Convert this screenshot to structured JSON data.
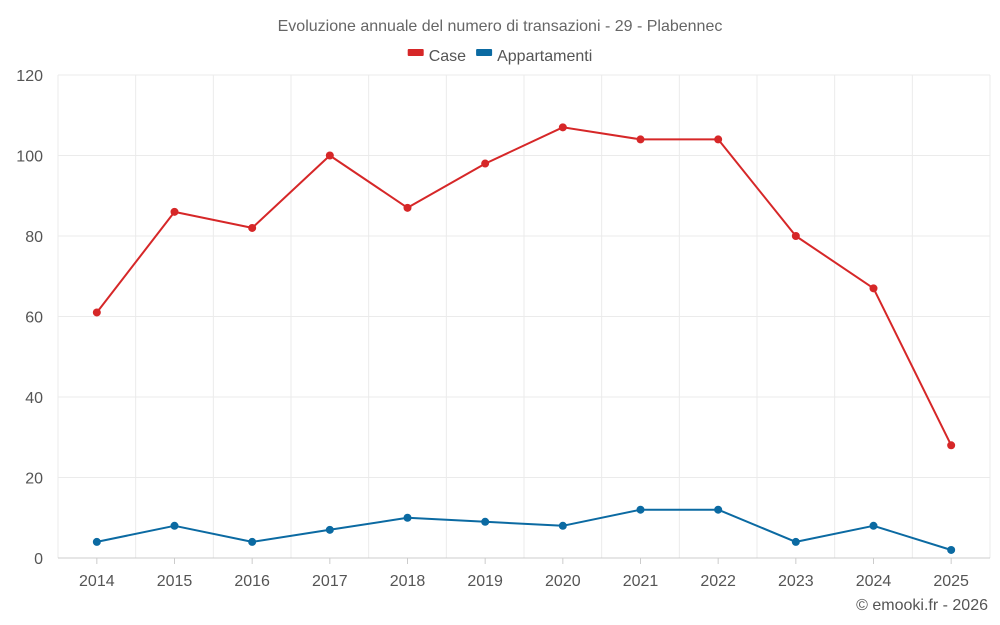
{
  "chart_data": {
    "type": "line",
    "title": "Evoluzione annuale del numero di transazioni - 29 - Plabennec",
    "categories": [
      "2014",
      "2015",
      "2016",
      "2017",
      "2018",
      "2019",
      "2020",
      "2021",
      "2022",
      "2023",
      "2024",
      "2025"
    ],
    "series": [
      {
        "name": "Case",
        "color": "#d62728",
        "values": [
          61,
          86,
          82,
          100,
          87,
          98,
          107,
          104,
          104,
          80,
          67,
          28
        ]
      },
      {
        "name": "Appartamenti",
        "color": "#0b6aa2",
        "values": [
          4,
          8,
          4,
          7,
          10,
          9,
          8,
          12,
          12,
          4,
          8,
          2
        ]
      }
    ],
    "ylim": [
      0,
      120
    ],
    "yticks": [
      0,
      20,
      40,
      60,
      80,
      100,
      120
    ],
    "grid": true,
    "legend": "top-center",
    "xlabel": "",
    "ylabel": ""
  },
  "credit": "© emooki.fr - 2026"
}
